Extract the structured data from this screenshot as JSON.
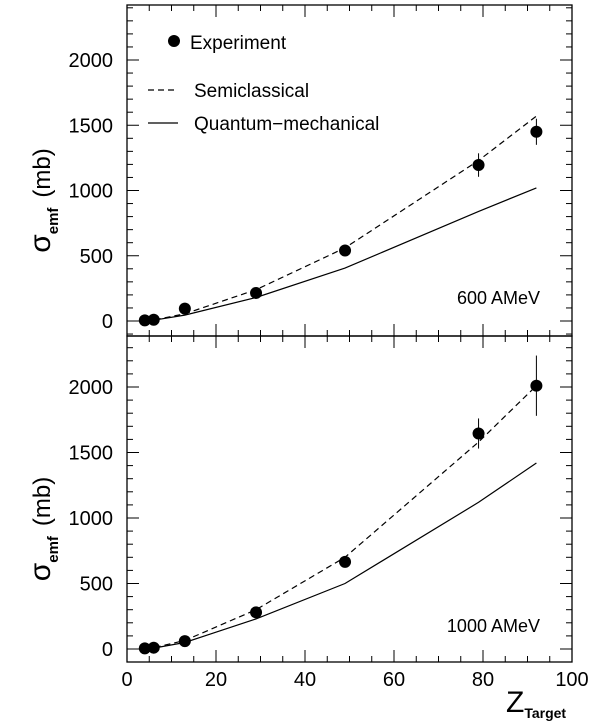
{
  "chart_data": [
    {
      "type": "scatter",
      "panel": "top",
      "energy_label": "600 AMeV",
      "ylabel": "σ",
      "ylabel_sub": "emf",
      "ylabel_unit": "(mb)",
      "xlim": [
        0,
        100
      ],
      "ylim": [
        -100,
        2400
      ],
      "y_ticks": [
        0,
        500,
        1000,
        1500,
        2000
      ],
      "grid": false,
      "legend_position": "top-left",
      "legend": [
        {
          "label": "Experiment",
          "style": "marker"
        },
        {
          "label": "Semiclassical",
          "style": "dashed"
        },
        {
          "label": "Quantum−mechanical",
          "style": "solid"
        }
      ],
      "series": [
        {
          "name": "Experiment",
          "kind": "points",
          "points": [
            {
              "x": 4,
              "y": 5,
              "err": 0
            },
            {
              "x": 6,
              "y": 10,
              "err": 0
            },
            {
              "x": 13,
              "y": 95,
              "err": 10
            },
            {
              "x": 29,
              "y": 215,
              "err": 20
            },
            {
              "x": 49,
              "y": 540,
              "err": 40
            },
            {
              "x": 79,
              "y": 1195,
              "err": 90
            },
            {
              "x": 92,
              "y": 1450,
              "err": 100
            }
          ]
        },
        {
          "name": "Semiclassical",
          "kind": "dashed",
          "x": [
            4,
            6,
            13,
            29,
            49,
            79,
            92
          ],
          "y": [
            3,
            8,
            55,
            240,
            560,
            1230,
            1570
          ]
        },
        {
          "name": "Quantum−mechanical",
          "kind": "solid",
          "x": [
            4,
            6,
            13,
            29,
            49,
            79,
            92
          ],
          "y": [
            2,
            6,
            45,
            180,
            405,
            840,
            1020
          ]
        }
      ]
    },
    {
      "type": "scatter",
      "panel": "bottom",
      "energy_label": "1000 AMeV",
      "ylabel": "σ",
      "ylabel_sub": "emf",
      "ylabel_unit": "(mb)",
      "xlim": [
        0,
        100
      ],
      "ylim": [
        -100,
        2400
      ],
      "y_ticks": [
        0,
        500,
        1000,
        1500,
        2000
      ],
      "x_ticks": [
        0,
        20,
        40,
        60,
        80,
        100
      ],
      "xlabel": "Z",
      "xlabel_sub": "Target",
      "grid": false,
      "series": [
        {
          "name": "Experiment",
          "kind": "points",
          "points": [
            {
              "x": 4,
              "y": 5,
              "err": 0
            },
            {
              "x": 6,
              "y": 10,
              "err": 0
            },
            {
              "x": 13,
              "y": 60,
              "err": 10
            },
            {
              "x": 29,
              "y": 280,
              "err": 20
            },
            {
              "x": 49,
              "y": 665,
              "err": 40
            },
            {
              "x": 79,
              "y": 1645,
              "err": 115
            },
            {
              "x": 92,
              "y": 2010,
              "err": 230
            }
          ]
        },
        {
          "name": "Semiclassical",
          "kind": "dashed",
          "x": [
            4,
            6,
            13,
            29,
            49,
            79,
            92
          ],
          "y": [
            4,
            10,
            65,
            300,
            700,
            1580,
            2010
          ]
        },
        {
          "name": "Quantum−mechanical",
          "kind": "solid",
          "x": [
            4,
            6,
            13,
            29,
            49,
            79,
            92
          ],
          "y": [
            3,
            7,
            50,
            230,
            500,
            1120,
            1420
          ]
        }
      ]
    }
  ]
}
